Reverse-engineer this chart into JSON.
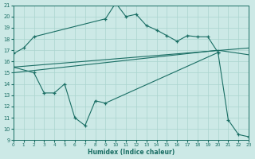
{
  "bg_color": "#cce9e6",
  "line_color": "#1a6e64",
  "grid_color": "#aad4cf",
  "xlabel": "Humidex (Indice chaleur)",
  "xlim": [
    0,
    23
  ],
  "ylim": [
    9,
    21
  ],
  "xticks": [
    0,
    1,
    2,
    3,
    4,
    5,
    6,
    7,
    8,
    9,
    10,
    11,
    12,
    13,
    14,
    15,
    16,
    17,
    18,
    19,
    20,
    21,
    22,
    23
  ],
  "yticks": [
    9,
    10,
    11,
    12,
    13,
    14,
    15,
    16,
    17,
    18,
    19,
    20,
    21
  ],
  "curve1_x": [
    0,
    1,
    2,
    9,
    10,
    11,
    12,
    13,
    14,
    15,
    16,
    17,
    18,
    19,
    20
  ],
  "curve1_y": [
    16.7,
    17.2,
    18.2,
    19.8,
    21.2,
    20.0,
    20.2,
    19.2,
    18.8,
    18.3,
    17.8,
    18.3,
    18.2,
    18.2,
    16.8
  ],
  "curve2_x": [
    0,
    2,
    3,
    4,
    5,
    6,
    7,
    8,
    9,
    20,
    21,
    22,
    23
  ],
  "curve2_y": [
    15.5,
    15.0,
    13.2,
    13.2,
    14.0,
    11.0,
    10.3,
    12.5,
    12.3,
    16.8,
    10.8,
    9.5,
    9.3
  ],
  "curve3_x": [
    0,
    23
  ],
  "curve3_y": [
    15.5,
    17.2
  ],
  "curve4_x": [
    0,
    20,
    23
  ],
  "curve4_y": [
    15.0,
    17.0,
    16.6
  ]
}
